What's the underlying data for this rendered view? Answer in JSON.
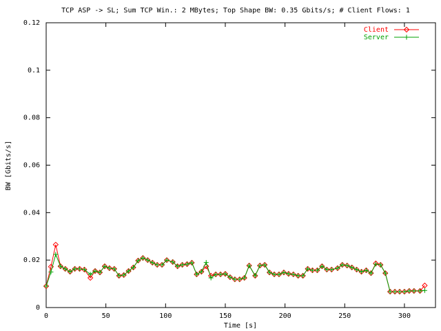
{
  "chart_data": {
    "type": "line",
    "title": "TCP ASP -> SL; Sum TCP Win.: 2 MBytes; Top Shape BW: 0.35 Gbits/s; # Client Flows: 1",
    "x_label": "Time [s]",
    "y_label": "BW [Gbits/s]",
    "x": [
      0,
      4,
      8,
      12,
      16,
      20,
      24,
      28,
      32,
      37,
      41,
      45,
      49,
      53,
      57,
      61,
      65,
      69,
      73,
      77,
      81,
      85,
      89,
      93,
      97,
      101,
      106,
      110,
      114,
      118,
      122,
      126,
      130,
      134,
      138,
      142,
      146,
      150,
      154,
      158,
      162,
      166,
      170,
      175,
      179,
      183,
      187,
      191,
      195,
      199,
      203,
      207,
      211,
      215,
      219,
      223,
      227,
      231,
      235,
      239,
      244,
      248,
      252,
      256,
      260,
      264,
      268,
      272,
      276,
      280,
      284,
      288,
      292,
      296,
      300,
      304,
      308,
      313,
      317
    ],
    "series": [
      {
        "name": "Client",
        "color": "#ff0000",
        "marker": "diamond",
        "values": [
          0.009,
          0.0172,
          0.0265,
          0.0174,
          0.0163,
          0.0151,
          0.0163,
          0.0163,
          0.016,
          0.0125,
          0.0154,
          0.0148,
          0.0174,
          0.0166,
          0.0163,
          0.0134,
          0.0137,
          0.0154,
          0.0169,
          0.0198,
          0.0209,
          0.02,
          0.0189,
          0.018,
          0.018,
          0.02,
          0.0192,
          0.0174,
          0.018,
          0.0183,
          0.0189,
          0.014,
          0.0151,
          0.0174,
          0.0134,
          0.014,
          0.014,
          0.0142,
          0.0128,
          0.0119,
          0.0119,
          0.0125,
          0.0177,
          0.0134,
          0.0177,
          0.018,
          0.0148,
          0.014,
          0.014,
          0.0148,
          0.0142,
          0.014,
          0.0134,
          0.0134,
          0.0163,
          0.0157,
          0.0157,
          0.0174,
          0.016,
          0.016,
          0.0166,
          0.018,
          0.0177,
          0.0169,
          0.016,
          0.0151,
          0.0157,
          0.0145,
          0.0186,
          0.018,
          0.0145,
          0.0067,
          0.0067,
          0.0067,
          0.0067,
          0.007,
          0.007,
          0.007,
          0.0093
        ]
      },
      {
        "name": "Server",
        "color": "#00a000",
        "marker": "plus",
        "values": [
          0.009,
          0.015,
          0.0224,
          0.0174,
          0.0163,
          0.0151,
          0.0163,
          0.0163,
          0.016,
          0.014,
          0.0154,
          0.0148,
          0.0174,
          0.0166,
          0.0163,
          0.0134,
          0.0137,
          0.0154,
          0.0169,
          0.0198,
          0.0209,
          0.02,
          0.0189,
          0.018,
          0.018,
          0.02,
          0.0192,
          0.0174,
          0.018,
          0.0183,
          0.0189,
          0.014,
          0.0151,
          0.019,
          0.0125,
          0.014,
          0.014,
          0.0142,
          0.0128,
          0.0119,
          0.0119,
          0.0125,
          0.0177,
          0.0134,
          0.0177,
          0.018,
          0.0148,
          0.014,
          0.014,
          0.0148,
          0.0142,
          0.014,
          0.0134,
          0.0134,
          0.0163,
          0.0157,
          0.0157,
          0.0174,
          0.016,
          0.016,
          0.0166,
          0.018,
          0.0177,
          0.0169,
          0.016,
          0.0151,
          0.0157,
          0.0145,
          0.0183,
          0.018,
          0.0145,
          0.0067,
          0.0067,
          0.0067,
          0.0067,
          0.007,
          0.007,
          0.007,
          0.0072
        ]
      }
    ],
    "xlim": [
      0,
      326
    ],
    "xticks": [
      0,
      50,
      100,
      150,
      200,
      250,
      300
    ],
    "ylim": [
      0,
      0.12
    ],
    "yticks": [
      0,
      0.02,
      0.04,
      0.06,
      0.08,
      0.1,
      0.12
    ],
    "legend": "top-right"
  }
}
